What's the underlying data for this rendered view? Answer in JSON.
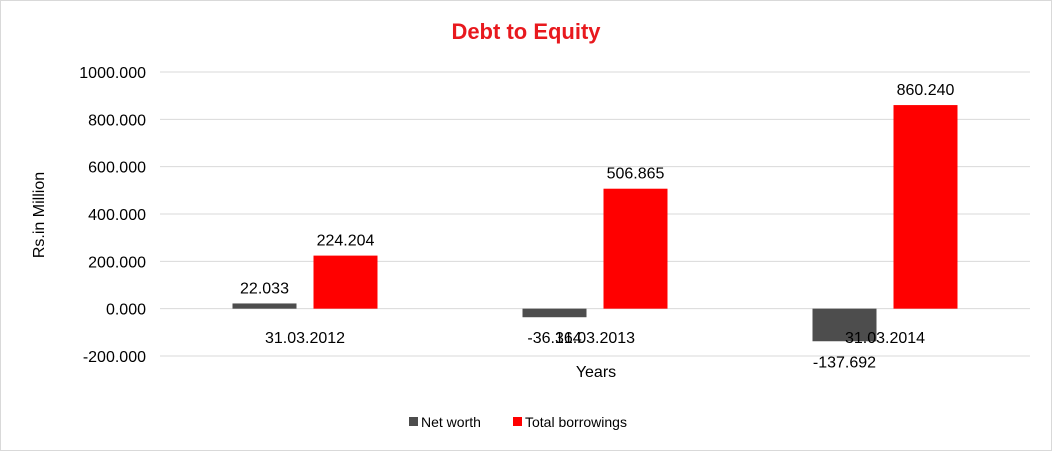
{
  "chart_data": {
    "type": "bar",
    "title": "Debt to Equity",
    "xlabel": "Years",
    "ylabel": "Rs.in Million",
    "categories": [
      "31.03.2012",
      "31.03.2013",
      "31.03.2014"
    ],
    "series": [
      {
        "name": "Net worth",
        "values": [
          22.033,
          -36.164,
          -137.692
        ],
        "labels": [
          "22.033",
          "-36.164",
          "-137.692"
        ]
      },
      {
        "name": "Total borrowings",
        "values": [
          224.204,
          506.865,
          860.24
        ],
        "labels": [
          "224.204",
          "506.865",
          "860.240"
        ]
      }
    ],
    "ylim": [
      -200,
      1000
    ],
    "yticks": [
      -200,
      0,
      200,
      400,
      600,
      800,
      1000
    ],
    "ytick_labels": [
      "-200.000",
      "0.000",
      "200.000",
      "400.000",
      "600.000",
      "800.000",
      "1000.000"
    ],
    "grid": true,
    "legend": "bottom",
    "colors": {
      "title": "#e8191e",
      "Net worth": "#4d4d4d",
      "Total borrowings": "#ff0000",
      "grid": "#d9d9d9"
    }
  }
}
